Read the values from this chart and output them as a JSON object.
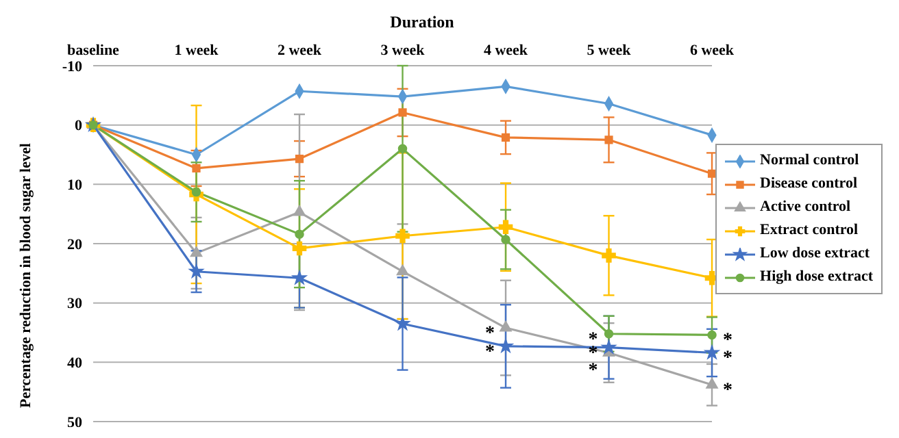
{
  "chart_data": {
    "type": "line",
    "title": "Duration",
    "ylabel": "Percentage reduction in blood sugar level",
    "categories": [
      "baseline",
      "1 week",
      "2 week",
      "3 week",
      "4 week",
      "5 week",
      "6 week"
    ],
    "series": [
      {
        "name": "Normal control",
        "color": "#5b9bd5",
        "marker": "diamond",
        "values": [
          0,
          5,
          -5.7,
          -4.8,
          -6.5,
          -3.6,
          1.7
        ]
      },
      {
        "name": "Disease control",
        "color": "#ed7d31",
        "marker": "square",
        "values": [
          0,
          7.3,
          5.7,
          -2.1,
          2.1,
          2.5,
          8.2
        ],
        "errors": [
          null,
          3,
          3,
          4,
          2.8,
          3.8,
          3.5
        ]
      },
      {
        "name": "Active control",
        "color": "#a5a5a5",
        "marker": "triangle",
        "values": [
          0,
          21.6,
          14.7,
          24.7,
          34.2,
          38.4,
          43.8
        ],
        "errors": [
          null,
          6,
          16.5,
          8,
          8,
          5,
          3.5
        ]
      },
      {
        "name": "Extract control",
        "color": "#ffc000",
        "marker": "cross",
        "values": [
          0,
          11.7,
          20.8,
          18.7,
          17.2,
          22,
          25.8
        ],
        "errors": [
          null,
          15,
          10,
          14,
          7.4,
          6.7,
          6.5
        ]
      },
      {
        "name": "Low dose extract",
        "color": "#4472c4",
        "marker": "star",
        "values": [
          0,
          24.7,
          25.8,
          33.5,
          37.3,
          37.5,
          38.4
        ],
        "errors": [
          null,
          3.5,
          5,
          7.8,
          7,
          5.3,
          4
        ]
      },
      {
        "name": "High dose extract",
        "color": "#70ad47",
        "marker": "circle",
        "values": [
          0,
          11.3,
          18.4,
          4,
          19.3,
          35.2,
          35.4
        ],
        "errors": [
          null,
          5,
          9,
          14,
          5,
          3,
          3
        ]
      }
    ],
    "annotations": [
      {
        "text": "*",
        "x": "4 week",
        "y": 34.2
      },
      {
        "text": "*",
        "x": "4 week",
        "y": 37.3
      },
      {
        "text": "*",
        "x": "5 week",
        "y": 35.2
      },
      {
        "text": "*",
        "x": "5 week",
        "y": 37.5
      },
      {
        "text": "*",
        "x": "5 week",
        "y": 38.4
      },
      {
        "text": "*",
        "x": "6 week",
        "y": 35.4
      },
      {
        "text": "*",
        "x": "6 week",
        "y": 38.4
      },
      {
        "text": "*",
        "x": "6 week",
        "y": 43.8
      }
    ],
    "ylim": [
      50,
      -10
    ],
    "yticks": [
      -10,
      0,
      10,
      20,
      30,
      40,
      50
    ],
    "grid": "y",
    "legend": "right"
  }
}
